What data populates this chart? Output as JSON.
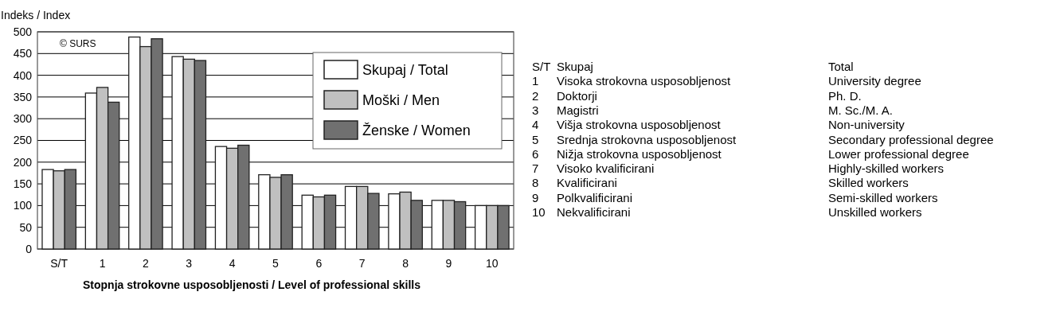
{
  "chart_data": {
    "type": "bar",
    "ylabel": "Indeks / Index",
    "xlabel": "Stopnja strokovne usposobljenosti / Level of professional skills",
    "categories": [
      "S/T",
      "1",
      "2",
      "3",
      "4",
      "5",
      "6",
      "7",
      "8",
      "9",
      "10"
    ],
    "series": [
      {
        "name": "Skupaj / Total",
        "color": "#ffffff",
        "values": [
          183,
          359,
          488,
          443,
          236,
          171,
          124,
          144,
          127,
          112,
          100
        ]
      },
      {
        "name": "Moški / Men",
        "color": "#c0c0c0",
        "values": [
          180,
          372,
          466,
          437,
          232,
          165,
          120,
          144,
          131,
          112,
          100
        ]
      },
      {
        "name": "Ženske / Women",
        "color": "#707070",
        "values": [
          183,
          338,
          484,
          434,
          239,
          171,
          124,
          128,
          112,
          109,
          100
        ]
      }
    ],
    "ylim": [
      0,
      500
    ],
    "yticks": [
      0,
      50,
      100,
      150,
      200,
      250,
      300,
      350,
      400,
      450,
      500
    ],
    "grid": "y",
    "legend": "top right",
    "annotations": [
      "© SURS",
      "S/T",
      "Skupaj",
      "Total",
      "1",
      "Visoka strokovna usposobljenost",
      "University degree",
      "2",
      "Doktorji",
      "Ph. D.",
      "3",
      "Magistri",
      "M. Sc./M. A.",
      "4",
      "Višja strokovna usposobljenost",
      "Non-university",
      "5",
      "Srednja strokovna usposobljenost",
      "Secondary professional degree",
      "6",
      "Nižja strokovna usposobljenost",
      "Lower professional degree",
      "7",
      "Visoko kvalificirani",
      "Highly-skilled workers",
      "8",
      "Kvalificirani",
      "Skilled workers",
      "9",
      "Polkvalificirani",
      "Semi-skilled workers",
      "10",
      "Nekvalificirani",
      "Unskilled workers"
    ]
  }
}
